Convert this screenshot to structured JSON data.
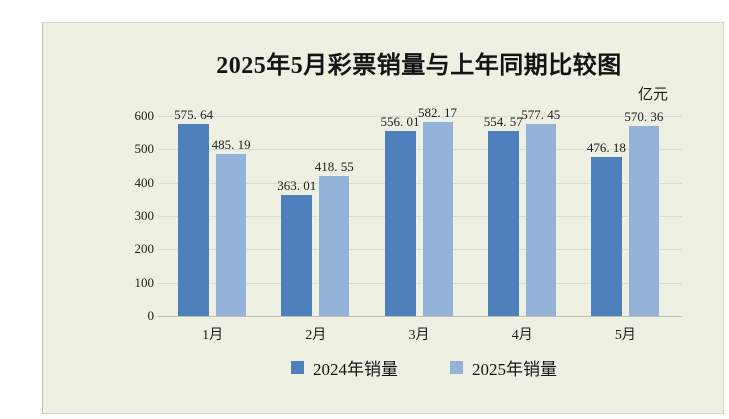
{
  "title": "2025年5月彩票销量与上年同期比较图",
  "unit_label": "亿元",
  "colors": {
    "canvas_background": "#edf0e2",
    "series_2024": "#4e80bb",
    "series_2025": "#95b2d8",
    "gridline": "#dadcd0",
    "axis_line": "#bfc3b4",
    "text": "#1d1d1d"
  },
  "chart_data": {
    "type": "bar",
    "title": "2025年5月彩票销量与上年同期比较图",
    "xlabel": "",
    "ylabel": "亿元",
    "categories": [
      "1月",
      "2月",
      "3月",
      "4月",
      "5月"
    ],
    "series": [
      {
        "name": "2024年销量",
        "color": "#4e80bb",
        "values": [
          575.64,
          363.01,
          556.01,
          554.57,
          476.18
        ],
        "labels": [
          "575. 64",
          "363. 01",
          "556. 01",
          "554. 57",
          "476. 18"
        ]
      },
      {
        "name": "2025年销量",
        "color": "#95b2d8",
        "values": [
          485.19,
          418.55,
          582.17,
          577.45,
          570.36
        ],
        "labels": [
          "485. 19",
          "418. 55",
          "582. 17",
          "577. 45",
          "570. 36"
        ]
      }
    ],
    "ylim": [
      0,
      600
    ],
    "yticks": [
      0,
      100,
      200,
      300,
      400,
      500,
      600
    ],
    "grid": true,
    "legend_position": "bottom"
  },
  "legend": {
    "items": [
      {
        "label": "2024年销量",
        "color": "#4e80bb"
      },
      {
        "label": "2025年销量",
        "color": "#95b2d8"
      }
    ]
  }
}
